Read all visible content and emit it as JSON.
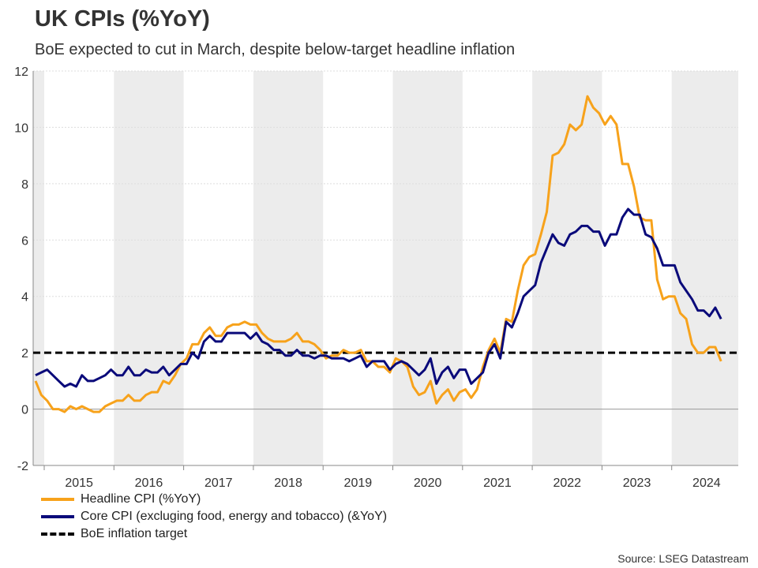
{
  "chart_data": {
    "type": "line",
    "title": "UK CPIs (%YoY)",
    "subtitle": "BoE expected to cut in March, despite below-target headline inflation",
    "xlabel": "",
    "ylabel": "",
    "ylim": [
      -2,
      12
    ],
    "yticks": [
      "-2",
      "0",
      "2",
      "4",
      "6",
      "8",
      "10",
      "12"
    ],
    "xticks": [
      "2015",
      "2016",
      "2017",
      "2018",
      "2019",
      "2020",
      "2021",
      "2022",
      "2023",
      "2024"
    ],
    "grid": true,
    "shaded_alternate_years": true,
    "legend_position": "bottom-left",
    "x": [
      "2014-11",
      "2014-12",
      "2015-01",
      "2015-02",
      "2015-03",
      "2015-04",
      "2015-05",
      "2015-06",
      "2015-07",
      "2015-08",
      "2015-09",
      "2015-10",
      "2015-11",
      "2015-12",
      "2016-01",
      "2016-02",
      "2016-03",
      "2016-04",
      "2016-05",
      "2016-06",
      "2016-07",
      "2016-08",
      "2016-09",
      "2016-10",
      "2016-11",
      "2016-12",
      "2017-01",
      "2017-02",
      "2017-03",
      "2017-04",
      "2017-05",
      "2017-06",
      "2017-07",
      "2017-08",
      "2017-09",
      "2017-10",
      "2017-11",
      "2017-12",
      "2018-01",
      "2018-02",
      "2018-03",
      "2018-04",
      "2018-05",
      "2018-06",
      "2018-07",
      "2018-08",
      "2018-09",
      "2018-10",
      "2018-11",
      "2018-12",
      "2019-01",
      "2019-02",
      "2019-03",
      "2019-04",
      "2019-05",
      "2019-06",
      "2019-07",
      "2019-08",
      "2019-09",
      "2019-10",
      "2019-11",
      "2019-12",
      "2020-01",
      "2020-02",
      "2020-03",
      "2020-04",
      "2020-05",
      "2020-06",
      "2020-07",
      "2020-08",
      "2020-09",
      "2020-10",
      "2020-11",
      "2020-12",
      "2021-01",
      "2021-02",
      "2021-03",
      "2021-04",
      "2021-05",
      "2021-06",
      "2021-07",
      "2021-08",
      "2021-09",
      "2021-10",
      "2021-11",
      "2021-12",
      "2022-01",
      "2022-02",
      "2022-03",
      "2022-04",
      "2022-05",
      "2022-06",
      "2022-07",
      "2022-08",
      "2022-09",
      "2022-10",
      "2022-11",
      "2022-12",
      "2023-01",
      "2023-02",
      "2023-03",
      "2023-04",
      "2023-05",
      "2023-06",
      "2023-07",
      "2023-08",
      "2023-09",
      "2023-10",
      "2023-11",
      "2023-12",
      "2024-01",
      "2024-02",
      "2024-03",
      "2024-04",
      "2024-05",
      "2024-06",
      "2024-07",
      "2024-08",
      "2024-09"
    ],
    "series": [
      {
        "name": "Headline CPI (%YoY)",
        "color": "#f7a21b",
        "values": [
          1.0,
          0.5,
          0.3,
          0.0,
          0.0,
          -0.1,
          0.1,
          0.0,
          0.1,
          0.0,
          -0.1,
          -0.1,
          0.1,
          0.2,
          0.3,
          0.3,
          0.5,
          0.3,
          0.3,
          0.5,
          0.6,
          0.6,
          1.0,
          0.9,
          1.2,
          1.6,
          1.8,
          2.3,
          2.3,
          2.7,
          2.9,
          2.6,
          2.6,
          2.9,
          3.0,
          3.0,
          3.1,
          3.0,
          3.0,
          2.7,
          2.5,
          2.4,
          2.4,
          2.4,
          2.5,
          2.7,
          2.4,
          2.4,
          2.3,
          2.1,
          1.8,
          1.9,
          1.9,
          2.1,
          2.0,
          2.0,
          2.1,
          1.7,
          1.7,
          1.5,
          1.5,
          1.3,
          1.8,
          1.7,
          1.5,
          0.8,
          0.5,
          0.6,
          1.0,
          0.2,
          0.5,
          0.7,
          0.3,
          0.6,
          0.7,
          0.4,
          0.7,
          1.5,
          2.1,
          2.5,
          2.0,
          3.2,
          3.1,
          4.2,
          5.1,
          5.4,
          5.5,
          6.2,
          7.0,
          9.0,
          9.1,
          9.4,
          10.1,
          9.9,
          10.1,
          11.1,
          10.7,
          10.5,
          10.1,
          10.4,
          10.1,
          8.7,
          8.7,
          7.9,
          6.8,
          6.7,
          6.7,
          4.6,
          3.9,
          4.0,
          4.0,
          3.4,
          3.2,
          2.3,
          2.0,
          2.0,
          2.2,
          2.2,
          1.7
        ]
      },
      {
        "name": "Core CPI (excluging food, energy and tobacco) (&YoY)",
        "color": "#0a0a7a",
        "values": [
          1.2,
          1.3,
          1.4,
          1.2,
          1.0,
          0.8,
          0.9,
          0.8,
          1.2,
          1.0,
          1.0,
          1.1,
          1.2,
          1.4,
          1.2,
          1.2,
          1.5,
          1.2,
          1.2,
          1.4,
          1.3,
          1.3,
          1.5,
          1.2,
          1.4,
          1.6,
          1.6,
          2.0,
          1.8,
          2.4,
          2.6,
          2.4,
          2.4,
          2.7,
          2.7,
          2.7,
          2.7,
          2.5,
          2.7,
          2.4,
          2.3,
          2.1,
          2.1,
          1.9,
          1.9,
          2.1,
          1.9,
          1.9,
          1.8,
          1.9,
          1.9,
          1.8,
          1.8,
          1.8,
          1.7,
          1.8,
          1.9,
          1.5,
          1.7,
          1.7,
          1.7,
          1.4,
          1.6,
          1.7,
          1.6,
          1.4,
          1.2,
          1.4,
          1.8,
          0.9,
          1.3,
          1.5,
          1.1,
          1.4,
          1.4,
          0.9,
          1.1,
          1.3,
          2.0,
          2.3,
          1.8,
          3.1,
          2.9,
          3.4,
          4.0,
          4.2,
          4.4,
          5.2,
          5.7,
          6.2,
          5.9,
          5.8,
          6.2,
          6.3,
          6.5,
          6.5,
          6.3,
          6.3,
          5.8,
          6.2,
          6.2,
          6.8,
          7.1,
          6.9,
          6.9,
          6.2,
          6.1,
          5.7,
          5.1,
          5.1,
          5.1,
          4.5,
          4.2,
          3.9,
          3.5,
          3.5,
          3.3,
          3.6,
          3.2
        ]
      }
    ],
    "reference_line": {
      "name": "BoE inflation target",
      "value": 2,
      "color": "#000000",
      "style": "dashed"
    },
    "source": "Source: LSEG Datastream"
  }
}
